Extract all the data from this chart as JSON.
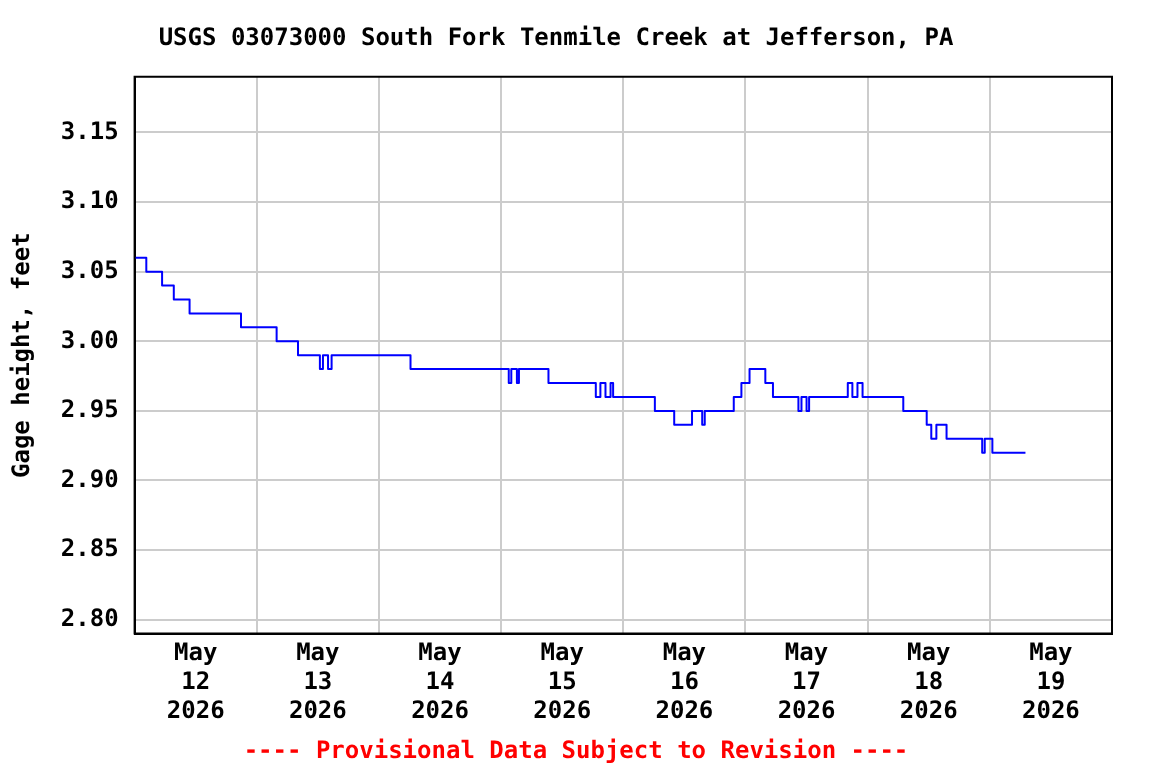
{
  "chart_data": {
    "type": "step",
    "title": "USGS 03073000 South Fork Tenmile Creek at Jefferson, PA",
    "ylabel": "Gage height, feet",
    "annotations": [
      "---- Provisional Data Subject to Revision ----"
    ],
    "x": [
      "2026-05-12T00:00",
      "2026-05-12T02:18",
      "2026-05-12T05:24",
      "2026-05-12T07:42",
      "2026-05-12T10:48",
      "2026-05-12T20:54",
      "2026-05-13T03:54",
      "2026-05-13T08:06",
      "2026-05-13T12:24",
      "2026-05-13T13:00",
      "2026-05-13T14:00",
      "2026-05-13T14:42",
      "2026-05-14T06:12",
      "2026-05-15T01:30",
      "2026-05-15T02:00",
      "2026-05-15T03:06",
      "2026-05-15T03:30",
      "2026-05-15T09:18",
      "2026-05-15T18:36",
      "2026-05-15T19:30",
      "2026-05-15T20:30",
      "2026-05-15T21:30",
      "2026-05-15T22:00",
      "2026-05-16T06:12",
      "2026-05-16T10:00",
      "2026-05-16T13:30",
      "2026-05-16T15:30",
      "2026-05-16T16:00",
      "2026-05-16T21:42",
      "2026-05-16T23:12",
      "2026-05-17T00:48",
      "2026-05-17T03:54",
      "2026-05-17T05:24",
      "2026-05-17T10:24",
      "2026-05-17T11:00",
      "2026-05-17T12:00",
      "2026-05-17T12:30",
      "2026-05-17T20:06",
      "2026-05-17T21:00",
      "2026-05-17T22:00",
      "2026-05-17T23:00",
      "2026-05-18T07:00",
      "2026-05-18T11:36",
      "2026-05-18T12:30",
      "2026-05-18T13:30",
      "2026-05-18T15:30",
      "2026-05-18T22:30",
      "2026-05-18T23:00",
      "2026-05-19T00:30",
      "2026-05-19T07:00"
    ],
    "series": [
      {
        "color": "#0000ff",
        "values": [
          3.06,
          3.05,
          3.04,
          3.03,
          3.02,
          3.01,
          3.0,
          2.99,
          2.98,
          2.99,
          2.98,
          2.99,
          2.98,
          2.97,
          2.98,
          2.97,
          2.98,
          2.97,
          2.96,
          2.97,
          2.96,
          2.97,
          2.96,
          2.95,
          2.94,
          2.95,
          2.94,
          2.95,
          2.96,
          2.97,
          2.98,
          2.97,
          2.96,
          2.95,
          2.96,
          2.95,
          2.96,
          2.97,
          2.96,
          2.97,
          2.96,
          2.95,
          2.94,
          2.93,
          2.94,
          2.93,
          2.92,
          2.93,
          2.92,
          2.92
        ]
      }
    ],
    "xlim": [
      "2026-05-12T00:00",
      "2026-05-20T00:00"
    ],
    "xticks": [
      {
        "value": "2026-05-12T12:00",
        "label": "May\n12\n2026"
      },
      {
        "value": "2026-05-13T00:00",
        "label": null
      },
      {
        "value": "2026-05-13T12:00",
        "label": "May\n13\n2026"
      },
      {
        "value": "2026-05-14T00:00",
        "label": null
      },
      {
        "value": "2026-05-14T12:00",
        "label": "May\n14\n2026"
      },
      {
        "value": "2026-05-15T00:00",
        "label": null
      },
      {
        "value": "2026-05-15T12:00",
        "label": "May\n15\n2026"
      },
      {
        "value": "2026-05-16T00:00",
        "label": null
      },
      {
        "value": "2026-05-16T12:00",
        "label": "May\n16\n2026"
      },
      {
        "value": "2026-05-17T00:00",
        "label": null
      },
      {
        "value": "2026-05-17T12:00",
        "label": "May\n17\n2026"
      },
      {
        "value": "2026-05-18T00:00",
        "label": null
      },
      {
        "value": "2026-05-18T12:00",
        "label": "May\n18\n2026"
      },
      {
        "value": "2026-05-19T00:00",
        "label": null
      },
      {
        "value": "2026-05-19T12:00",
        "label": "May\n19\n2026"
      }
    ],
    "ylim": [
      2.79,
      3.19
    ],
    "yticks": [
      {
        "value": 2.8,
        "label": "2.80"
      },
      {
        "value": 2.85,
        "label": "2.85"
      },
      {
        "value": 2.9,
        "label": "2.90"
      },
      {
        "value": 2.95,
        "label": "2.95"
      },
      {
        "value": 3.0,
        "label": "3.00"
      },
      {
        "value": 3.05,
        "label": "3.05"
      },
      {
        "value": 3.1,
        "label": "3.10"
      },
      {
        "value": 3.15,
        "label": "3.15"
      }
    ],
    "grid": true,
    "legend": false,
    "marker": "none",
    "line_style": "solid"
  }
}
